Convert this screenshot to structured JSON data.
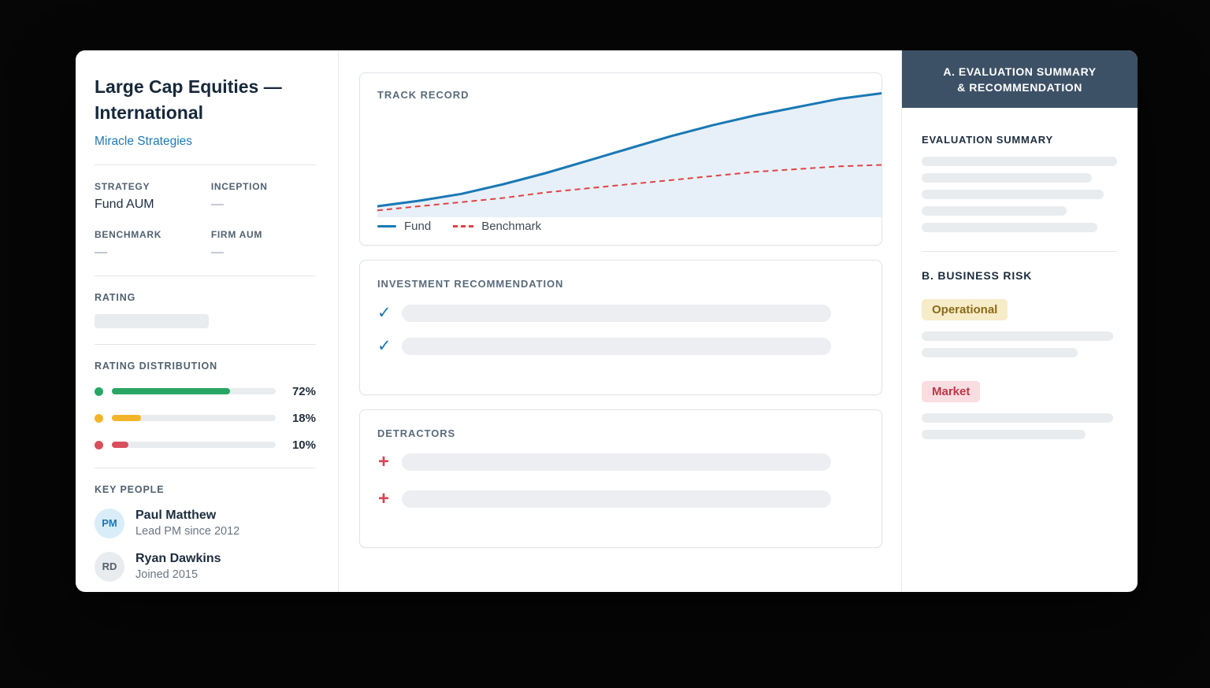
{
  "sidebar": {
    "title": "Large Cap Equities — International",
    "firm_link": "Miracle Strategies",
    "facts": [
      {
        "label": "STRATEGY",
        "value": "Fund AUM"
      },
      {
        "label": "INCEPTION",
        "value": "—"
      },
      {
        "label": "BENCHMARK",
        "value": "—"
      },
      {
        "label": "FIRM AUM",
        "value": "—"
      }
    ],
    "rating_label": "RATING",
    "rating_distribution": {
      "label": "RATING DISTRIBUTION",
      "rows": [
        {
          "name": "positive",
          "color": "#2aa664",
          "pct": "72%"
        },
        {
          "name": "neutral",
          "color": "#f2b52a",
          "pct": "18%"
        },
        {
          "name": "negative",
          "color": "#d94f5c",
          "pct": "10%"
        }
      ]
    },
    "key_people": {
      "label": "KEY PEOPLE",
      "people": [
        {
          "initials": "PM",
          "name": "Paul Matthew",
          "detail": "Lead PM since 2012",
          "avatar_bg": "#d9edf9",
          "avatar_color": "#2076b4"
        },
        {
          "initials": "RD",
          "name": "Ryan Dawkins",
          "detail": "Joined 2015",
          "avatar_bg": "#e9ecef",
          "avatar_color": "#55606c"
        }
      ]
    }
  },
  "main": {
    "track_record_title": "TRACK RECORD",
    "recommendation_title": "INVESTMENT RECOMMENDATION",
    "detractors_title": "DETRACTORS"
  },
  "icons": {
    "check": "✓",
    "plus": "+"
  },
  "right_panel": {
    "header_line1": "A. EVALUATION SUMMARY",
    "header_line2": "& RECOMMENDATION",
    "header_bg": "#3d5166",
    "evaluation_summary_label": "EVALUATION SUMMARY",
    "business_risk_label": "B. BUSINESS RISK",
    "risks": [
      {
        "label": "Operational",
        "bg": "#f7ecc8",
        "color": "#8a6a1b"
      },
      {
        "label": "Market",
        "bg": "#fadde1",
        "color": "#c03546"
      }
    ]
  },
  "chart_data": {
    "type": "line",
    "title": "TRACK RECORD",
    "xlabel": "",
    "ylabel": "",
    "axes_visible": false,
    "grid": false,
    "legend_position": "bottom-left",
    "ylim": [
      0,
      100
    ],
    "x": [
      0,
      1,
      2,
      3,
      4,
      5,
      6,
      7,
      8,
      9,
      10,
      11,
      12
    ],
    "fill_color": "#e7f0f8",
    "series": [
      {
        "name": "Fund",
        "color": "#1a78b4",
        "style": "solid",
        "fill": true,
        "values": [
          8,
          12,
          17,
          24,
          32,
          41,
          50,
          59,
          67,
          74,
          80,
          86,
          90
        ]
      },
      {
        "name": "Benchmark",
        "color": "#e04444",
        "style": "dashed",
        "fill": false,
        "values": [
          5,
          8,
          11,
          14,
          18,
          21,
          24,
          27,
          30,
          33,
          35,
          37,
          38
        ]
      }
    ]
  }
}
